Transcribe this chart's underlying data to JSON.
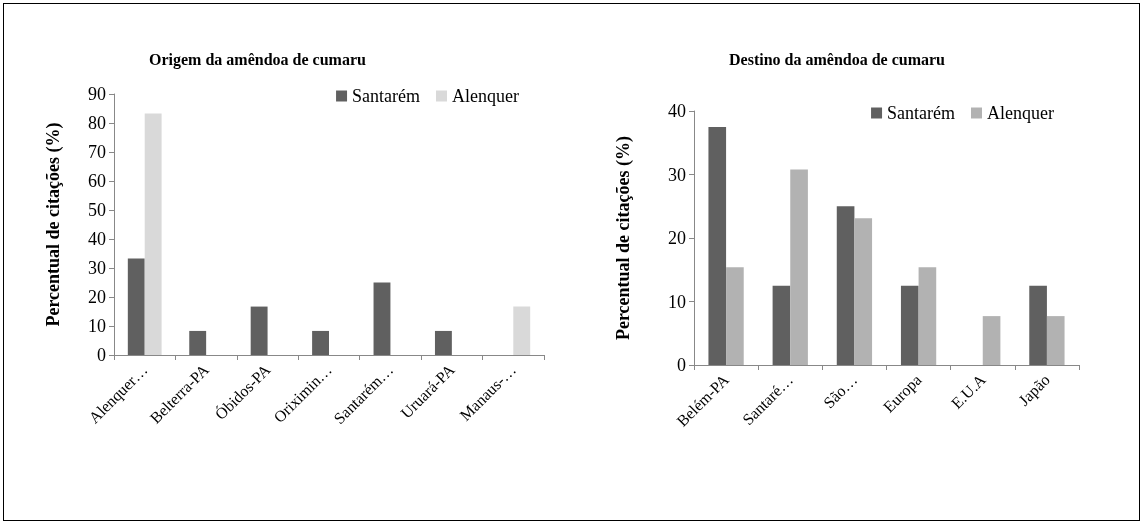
{
  "chart_data": [
    {
      "type": "bar",
      "title": "Origem da amêndoa de cumaru",
      "ylabel": "Percentual de citações (%)",
      "categories": [
        "Alenquer…",
        "Belterra-PA",
        "Óbidos-PA",
        "Oriximin…",
        "Santarém…",
        "Uruará-PA",
        "Manaus-…"
      ],
      "series": [
        {
          "name": "Santarém",
          "color": "#606060",
          "values": [
            33.3,
            8.3,
            16.7,
            8.3,
            25,
            8.3,
            0
          ]
        },
        {
          "name": "Alenquer",
          "color": "#d9d9d9",
          "values": [
            83.3,
            0,
            0,
            0,
            0,
            0,
            16.7
          ]
        }
      ],
      "ylim": [
        0,
        90
      ],
      "yticks": [
        0,
        10,
        20,
        30,
        40,
        50,
        60,
        70,
        80,
        90
      ],
      "grid": false,
      "legend": "top right"
    },
    {
      "type": "bar",
      "title": "Destino da amêndoa de cumaru",
      "ylabel": "Percentual de citações (%)",
      "categories": [
        "Belém-PA",
        "Santaré…",
        "São…",
        "Europa",
        "E.U.A",
        "Japão"
      ],
      "series": [
        {
          "name": "Santarém",
          "color": "#606060",
          "values": [
            37.5,
            12.5,
            25,
            12.5,
            0,
            12.5
          ]
        },
        {
          "name": "Alenquer",
          "color": "#b2b2b2",
          "values": [
            15.4,
            30.8,
            23.1,
            15.4,
            7.7,
            7.7
          ]
        }
      ],
      "ylim": [
        0,
        40
      ],
      "yticks": [
        0,
        10,
        20,
        30,
        40
      ],
      "grid": false,
      "legend": "top right"
    }
  ]
}
